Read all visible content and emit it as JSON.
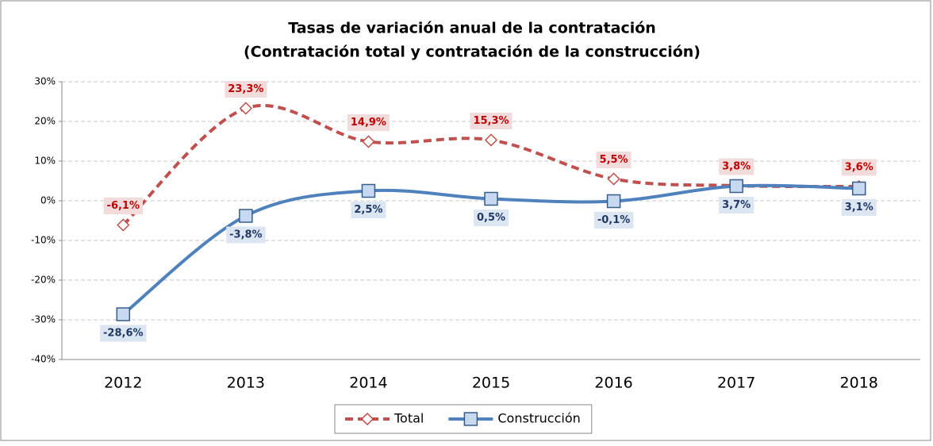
{
  "chart_data": {
    "type": "line",
    "title": "Tasas de variación anual de la contratación",
    "subtitle": "(Contratación total y contratación de la construcción)",
    "categories": [
      "2012",
      "2013",
      "2014",
      "2015",
      "2016",
      "2017",
      "2018"
    ],
    "series": [
      {
        "name": "Total",
        "color": "#c0504d",
        "values": [
          -6.1,
          23.3,
          14.9,
          15.3,
          5.5,
          3.8,
          3.6
        ],
        "value_labels": [
          "-6,1%",
          "23,3%",
          "14,9%",
          "15,3%",
          "5,5%",
          "3,8%",
          "3,6%"
        ]
      },
      {
        "name": "Construcción",
        "color": "#4f81bd",
        "values": [
          -28.6,
          -3.8,
          2.5,
          0.5,
          -0.1,
          3.7,
          3.1
        ],
        "value_labels": [
          "-28,6%",
          "-3,8%",
          "2,5%",
          "0,5%",
          "-0,1%",
          "3,7%",
          "3,1%"
        ]
      }
    ],
    "ylim": [
      -40,
      30
    ],
    "yticks": [
      {
        "value": -40,
        "label": "-40%"
      },
      {
        "value": -30,
        "label": "-30%"
      },
      {
        "value": -20,
        "label": "-20%"
      },
      {
        "value": -10,
        "label": "-10%"
      },
      {
        "value": 0,
        "label": "0%"
      },
      {
        "value": 10,
        "label": "10%"
      },
      {
        "value": 20,
        "label": "20%"
      },
      {
        "value": 30,
        "label": "30%"
      }
    ],
    "grid": true,
    "legend": "bottom"
  }
}
